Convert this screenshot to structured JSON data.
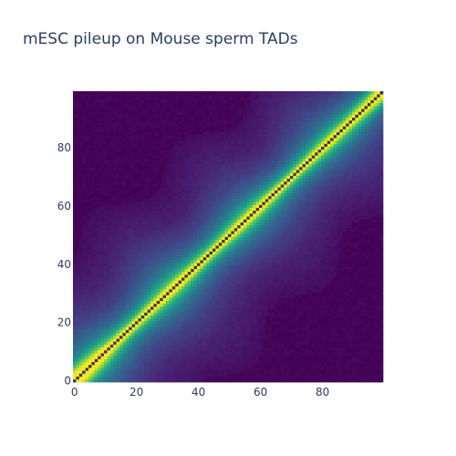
{
  "chart_data": {
    "type": "heatmap",
    "title": "mESC pileup on Mouse sperm TADs",
    "xlabel": "",
    "ylabel": "",
    "grid_size": 100,
    "x_range": [
      -0.5,
      99.5
    ],
    "y_range": [
      -0.5,
      99.5
    ],
    "x_ticks": [
      0,
      20,
      40,
      60,
      80
    ],
    "y_ticks": [
      0,
      20,
      40,
      60,
      80
    ],
    "colorscale": "viridis",
    "colorscale_stops": [
      "#440154",
      "#482878",
      "#3e4989",
      "#31688e",
      "#26828e",
      "#1f9e89",
      "#35b779",
      "#6ece58",
      "#b5de2b",
      "#fde725"
    ],
    "main_diagonal_color": "#2d3a5a",
    "diagonal_band_profile": [
      {
        "offset": 1,
        "value": 1.0
      },
      {
        "offset": 2,
        "value": 0.72
      },
      {
        "offset": 3,
        "value": 0.6
      },
      {
        "offset": 4,
        "value": 0.5
      },
      {
        "offset": 6,
        "value": 0.36
      },
      {
        "offset": 8,
        "value": 0.28
      },
      {
        "offset": 12,
        "value": 0.18
      },
      {
        "offset": 20,
        "value": 0.08
      },
      {
        "offset": 35,
        "value": 0.02
      }
    ],
    "corner_enrichment": "high near (0,0) and (99,99)"
  }
}
